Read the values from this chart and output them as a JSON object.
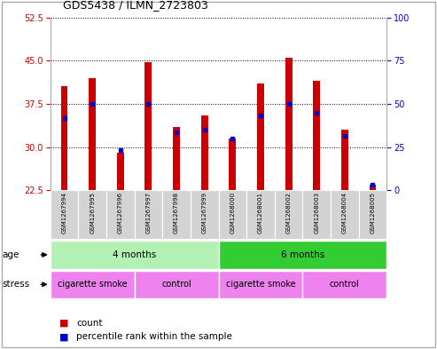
{
  "title": "GDS5438 / ILMN_2723803",
  "samples": [
    "GSM1267994",
    "GSM1267995",
    "GSM1267996",
    "GSM1267997",
    "GSM1267998",
    "GSM1267999",
    "GSM1268000",
    "GSM1268001",
    "GSM1268002",
    "GSM1268003",
    "GSM1268004",
    "GSM1268005"
  ],
  "red_values": [
    40.5,
    42.0,
    29.0,
    44.8,
    33.5,
    35.5,
    31.5,
    41.0,
    45.5,
    41.5,
    33.0,
    23.5
  ],
  "blue_values": [
    35.0,
    37.5,
    29.5,
    37.5,
    32.5,
    33.0,
    31.5,
    35.5,
    37.5,
    36.0,
    32.0,
    23.5
  ],
  "ylim_left": [
    22.5,
    52.5
  ],
  "ylim_right": [
    0,
    100
  ],
  "yticks_left": [
    22.5,
    30,
    37.5,
    45,
    52.5
  ],
  "yticks_right": [
    0,
    25,
    50,
    75,
    100
  ],
  "age_groups": [
    {
      "label": "4 months",
      "start": 0,
      "end": 6,
      "color": "#b3f0b3"
    },
    {
      "label": "6 months",
      "start": 6,
      "end": 12,
      "color": "#33cc33"
    }
  ],
  "stress_groups": [
    {
      "label": "cigarette smoke",
      "start": 0,
      "end": 3,
      "color": "#ee82ee"
    },
    {
      "label": "control",
      "start": 3,
      "end": 6,
      "color": "#ee82ee"
    },
    {
      "label": "cigarette smoke",
      "start": 6,
      "end": 9,
      "color": "#ee82ee"
    },
    {
      "label": "control",
      "start": 9,
      "end": 12,
      "color": "#ee82ee"
    }
  ],
  "bar_color": "#cc0000",
  "dot_color": "#0000cc",
  "bg_color": "#ffffff",
  "plot_bg": "#ffffff",
  "grid_color": "#000000",
  "axis_left_color": "#cc0000",
  "axis_right_color": "#0000cc",
  "sample_label_bg": "#d3d3d3",
  "age_label": "age",
  "stress_label": "stress",
  "border_color": "#aaaaaa"
}
